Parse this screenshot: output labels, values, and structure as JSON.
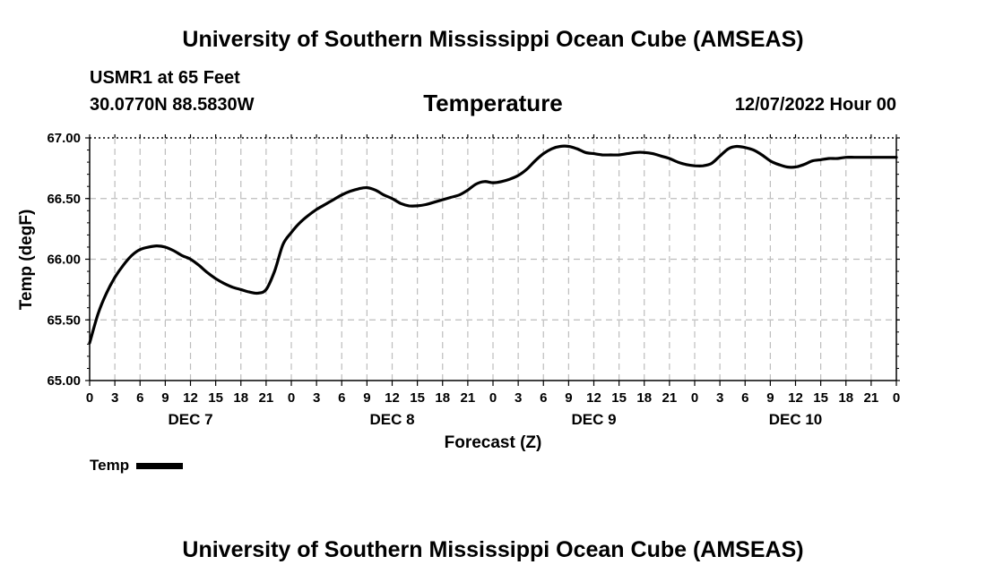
{
  "header": {
    "title": "University of Southern Mississippi Ocean Cube (AMSEAS)",
    "station": "USMR1 at 65 Feet",
    "coords": "30.0770N  88.5830W",
    "parameter": "Temperature",
    "datetime": "12/07/2022 Hour 00"
  },
  "footer": {
    "title": "University of Southern Mississippi Ocean Cube (AMSEAS)"
  },
  "legend": {
    "label": "Temp",
    "color": "#000000"
  },
  "chart_data": {
    "type": "line",
    "title": "Temperature",
    "xlabel": "Forecast (Z)",
    "ylabel": "Temp (degF)",
    "ylim": [
      65.0,
      67.0
    ],
    "xlim": [
      0,
      96
    ],
    "yticks": [
      "65.00",
      "65.50",
      "66.00",
      "66.50",
      "67.00"
    ],
    "xtick_labels": [
      "0",
      "3",
      "6",
      "9",
      "12",
      "15",
      "18",
      "21",
      "0",
      "3",
      "6",
      "9",
      "12",
      "15",
      "18",
      "21",
      "0",
      "3",
      "6",
      "9",
      "12",
      "15",
      "18",
      "21",
      "0",
      "3",
      "6",
      "9",
      "12",
      "15",
      "18",
      "21",
      "0"
    ],
    "day_labels": [
      {
        "label": "DEC 7",
        "hour": 12
      },
      {
        "label": "DEC 8",
        "hour": 36
      },
      {
        "label": "DEC 9",
        "hour": 60
      },
      {
        "label": "DEC 10",
        "hour": 84
      }
    ],
    "grid": true,
    "series": [
      {
        "name": "Temp",
        "x": [
          0,
          1,
          2,
          3,
          4,
          5,
          6,
          7,
          8,
          9,
          10,
          11,
          12,
          13,
          14,
          15,
          16,
          17,
          18,
          19,
          20,
          21,
          22,
          23,
          24,
          25,
          26,
          27,
          28,
          29,
          30,
          31,
          32,
          33,
          34,
          35,
          36,
          37,
          38,
          39,
          40,
          41,
          42,
          43,
          44,
          45,
          46,
          47,
          48,
          49,
          50,
          51,
          52,
          53,
          54,
          55,
          56,
          57,
          58,
          59,
          60,
          61,
          62,
          63,
          64,
          65,
          66,
          67,
          68,
          69,
          70,
          71,
          72,
          73,
          74,
          75,
          76,
          77,
          78,
          79,
          80,
          81,
          82,
          83,
          84,
          85,
          86,
          87,
          88,
          89,
          90,
          91,
          92,
          93,
          94,
          95,
          96
        ],
        "values": [
          65.31,
          65.55,
          65.72,
          65.85,
          65.95,
          66.03,
          66.08,
          66.1,
          66.11,
          66.1,
          66.07,
          66.03,
          66.0,
          65.95,
          65.89,
          65.84,
          65.8,
          65.77,
          65.75,
          65.73,
          65.72,
          65.75,
          65.9,
          66.12,
          66.22,
          66.3,
          66.36,
          66.41,
          66.45,
          66.49,
          66.53,
          66.56,
          66.58,
          66.59,
          66.57,
          66.53,
          66.5,
          66.46,
          66.44,
          66.44,
          66.45,
          66.47,
          66.49,
          66.51,
          66.53,
          66.57,
          66.62,
          66.64,
          66.63,
          66.64,
          66.66,
          66.69,
          66.74,
          66.81,
          66.87,
          66.91,
          66.93,
          66.93,
          66.91,
          66.88,
          66.87,
          66.86,
          66.86,
          66.86,
          66.87,
          66.88,
          66.88,
          66.87,
          66.85,
          66.83,
          66.8,
          66.78,
          66.77,
          66.77,
          66.79,
          66.85,
          66.91,
          66.93,
          66.92,
          66.9,
          66.86,
          66.81,
          66.78,
          66.76,
          66.76,
          66.78,
          66.81,
          66.82,
          66.83,
          66.83,
          66.84,
          66.84,
          66.84,
          66.84,
          66.84,
          66.84,
          66.84
        ]
      }
    ]
  }
}
